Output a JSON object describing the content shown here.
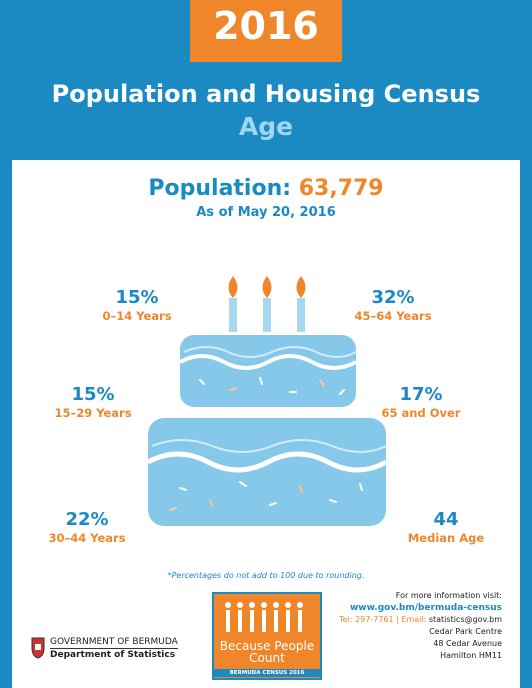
{
  "header": {
    "year": "2016",
    "title": "Population and Housing Census",
    "subtitle": "Age"
  },
  "population": {
    "label": "Population:",
    "value": "63,779",
    "as_of": "As of May 20, 2016"
  },
  "stats": [
    {
      "value": "15%",
      "label": "0–14 Years"
    },
    {
      "value": "32%",
      "label": "45–64 Years"
    },
    {
      "value": "15%",
      "label": "15–29 Years"
    },
    {
      "value": "17%",
      "label": "65 and Over"
    },
    {
      "value": "22%",
      "label": "30–44 Years"
    },
    {
      "value": "44",
      "label": "Median Age"
    }
  ],
  "footnote": "*Percentages do not add to 100 due to rounding.",
  "logo": {
    "main": "Because People Count",
    "sub": "BERMUDA CENSUS 2016"
  },
  "contact": {
    "intro": "For more information visit:",
    "website": "www.gov.bm/bermuda-census",
    "tel": "Tel: 297-7761",
    "email_label": "Email:",
    "email": "statistics@gov.bm",
    "address": [
      "Cedar Park Centre",
      "48 Cedar Avenue",
      "Hamilton HM11"
    ]
  },
  "government": {
    "name": "GOVERNMENT OF BERMUDA",
    "department": "Department of Statistics"
  }
}
